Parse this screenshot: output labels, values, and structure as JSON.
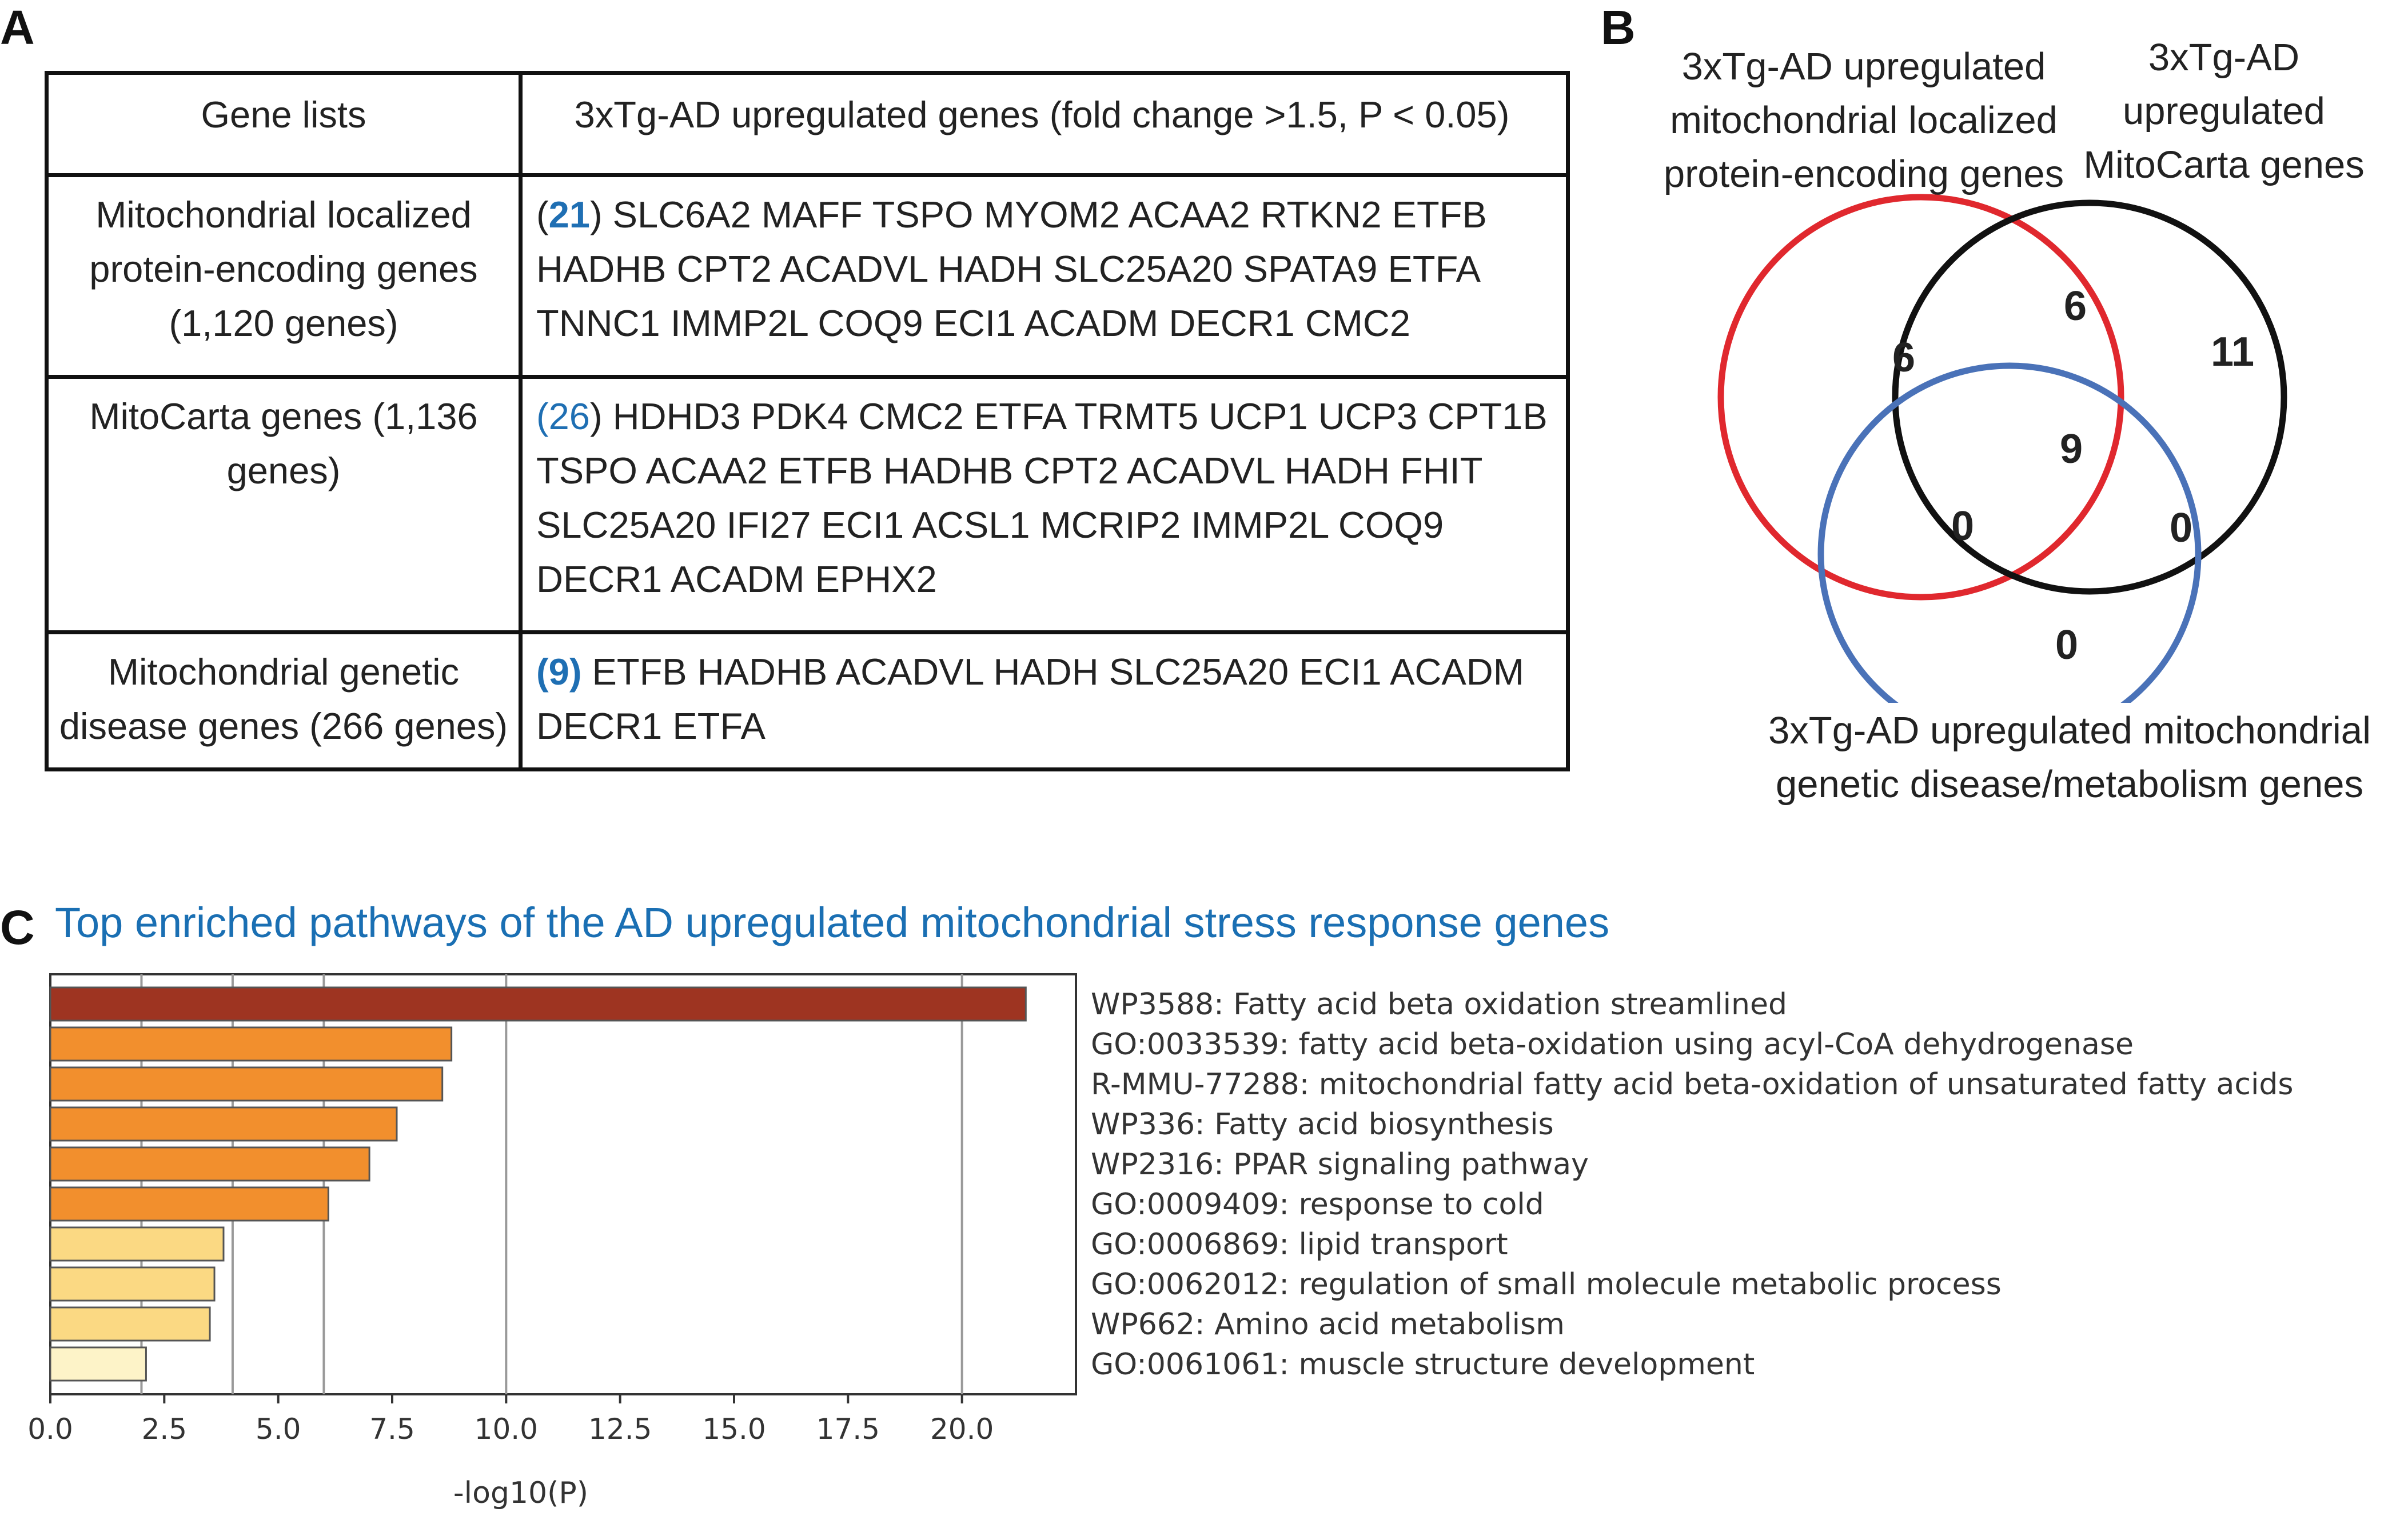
{
  "panels": {
    "a": "A",
    "b": "B",
    "c": "C"
  },
  "table": {
    "header": {
      "col1": "Gene lists",
      "col2": "3xTg-AD upregulated genes (fold change >1.5, P < 0.05)"
    },
    "rows": [
      {
        "list_name": "Mitochondrial localized protein-encoding genes (1,120 genes)",
        "open_paren": "(",
        "count": "21",
        "close_paren": ")",
        "genes": " SLC6A2 MAFF TSPO MYOM2 ACAA2 RTKN2 ETFB HADHB CPT2 ACADVL HADH SLC25A20 SPATA9 ETFA TNNC1 IMMP2L COQ9 ECI1 ACADM DECR1 CMC2"
      },
      {
        "list_name": "MitoCarta genes (1,136 genes)",
        "open_paren": "(",
        "count": "26",
        "close_paren": ")",
        "genes": " HDHD3 PDK4 CMC2 ETFA TRMT5 UCP1 UCP3 CPT1B TSPO ACAA2 ETFB HADHB CPT2 ACADVL HADH FHIT SLC25A20 IFI27 ECI1 ACSL1  MCRIP2 IMMP2L COQ9 DECR1 ACADM EPHX2"
      },
      {
        "list_name": "Mitochondrial genetic disease genes (266 genes)",
        "open_paren": "(",
        "count": "9",
        "close_paren": ")",
        "genes": " ETFB HADHB ACADVL HADH SLC25A20 ECI1 ACADM DECR1 ETFA"
      }
    ]
  },
  "venn": {
    "label_red": "3xTg-AD upregulated mitochondrial localized protein-encoding genes",
    "label_black": "3xTg-AD upregulated MitoCarta genes",
    "label_blue": "3xTg-AD upregulated mitochondrial genetic disease/metabolism genes",
    "red_only": "6",
    "red_black": "6",
    "black_only": "11",
    "all_three": "9",
    "red_blue": "0",
    "black_blue": "0",
    "blue_only": "0",
    "colors": {
      "red": "#e0282e",
      "black": "#111111",
      "blue": "#4a72b8"
    }
  },
  "pathways": {
    "title": "Top enriched pathways of the AD upregulated mitochondrial stress response genes"
  },
  "chart_data": {
    "type": "bar",
    "orientation": "horizontal",
    "categories": [
      "WP3588: Fatty acid beta oxidation streamlined",
      "GO:0033539: fatty acid beta-oxidation using acyl-CoA dehydrogenase",
      "R-MMU-77288: mitochondrial fatty acid beta-oxidation of unsaturated fatty acids",
      "WP336: Fatty acid biosynthesis",
      "WP2316: PPAR signaling pathway",
      "GO:0009409: response to cold",
      "GO:0006869: lipid transport",
      "GO:0062012: regulation of small molecule metabolic process",
      "WP662: Amino acid metabolism",
      "GO:0061061: muscle structure development"
    ],
    "values": [
      21.4,
      8.8,
      8.6,
      7.6,
      7.0,
      6.1,
      3.8,
      3.6,
      3.5,
      2.1
    ],
    "bar_colors": [
      "#9e3421",
      "#f28f2d",
      "#f28f2d",
      "#f28f2d",
      "#f28f2d",
      "#f28f2d",
      "#fbd983",
      "#fbd983",
      "#fbd983",
      "#fdf3c8"
    ],
    "xlabel": "-log10(P)",
    "ylabel": "",
    "xlim": [
      0,
      22.5
    ],
    "xticks": [
      0.0,
      2.5,
      5.0,
      7.5,
      10.0,
      12.5,
      15.0,
      17.5,
      20.0
    ],
    "xtick_labels": [
      "0.0",
      "2.5",
      "5.0",
      "7.5",
      "10.0",
      "12.5",
      "15.0",
      "17.5",
      "20.0"
    ],
    "gridlines": [
      2,
      4,
      6,
      10,
      20
    ],
    "grid": true
  }
}
